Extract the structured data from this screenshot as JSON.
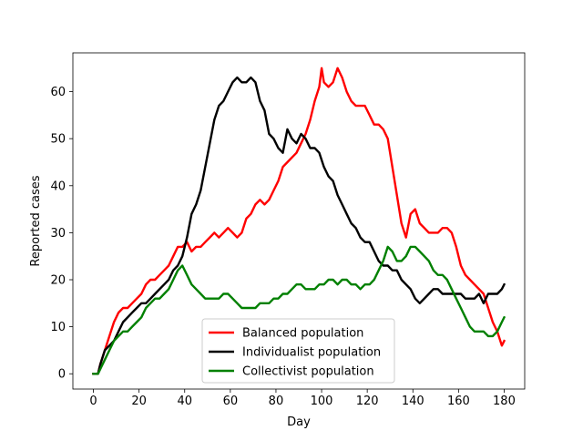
{
  "chart_data": {
    "type": "line",
    "title": "",
    "xlabel": "Day",
    "ylabel": "Reported cases",
    "xlim": [
      -9,
      189
    ],
    "ylim": [
      -3.25,
      68.25
    ],
    "xticks": [
      0,
      20,
      40,
      60,
      80,
      100,
      120,
      140,
      160,
      180
    ],
    "yticks": [
      0,
      10,
      20,
      30,
      40,
      50,
      60
    ],
    "grid": false,
    "legend_position": "lower center",
    "series": [
      {
        "name": "Balanced population",
        "color": "#ff0000",
        "points": [
          [
            0,
            0
          ],
          [
            2,
            0
          ],
          [
            3,
            2
          ],
          [
            5,
            5
          ],
          [
            7,
            8
          ],
          [
            9,
            11
          ],
          [
            11,
            13
          ],
          [
            13,
            14
          ],
          [
            15,
            14
          ],
          [
            17,
            15
          ],
          [
            19,
            16
          ],
          [
            21,
            17
          ],
          [
            23,
            19
          ],
          [
            25,
            20
          ],
          [
            27,
            20
          ],
          [
            29,
            21
          ],
          [
            31,
            22
          ],
          [
            33,
            23
          ],
          [
            35,
            25
          ],
          [
            37,
            27
          ],
          [
            39,
            27
          ],
          [
            41,
            28
          ],
          [
            43,
            26
          ],
          [
            45,
            27
          ],
          [
            47,
            27
          ],
          [
            49,
            28
          ],
          [
            51,
            29
          ],
          [
            53,
            30
          ],
          [
            55,
            29
          ],
          [
            57,
            30
          ],
          [
            59,
            31
          ],
          [
            61,
            30
          ],
          [
            63,
            29
          ],
          [
            65,
            30
          ],
          [
            67,
            33
          ],
          [
            69,
            34
          ],
          [
            71,
            36
          ],
          [
            73,
            37
          ],
          [
            75,
            36
          ],
          [
            77,
            37
          ],
          [
            79,
            39
          ],
          [
            81,
            41
          ],
          [
            83,
            44
          ],
          [
            85,
            45
          ],
          [
            87,
            46
          ],
          [
            89,
            47
          ],
          [
            91,
            49
          ],
          [
            93,
            51
          ],
          [
            95,
            54
          ],
          [
            97,
            58
          ],
          [
            99,
            61
          ],
          [
            100,
            65
          ],
          [
            101,
            62
          ],
          [
            103,
            61
          ],
          [
            105,
            62
          ],
          [
            107,
            65
          ],
          [
            109,
            63
          ],
          [
            111,
            60
          ],
          [
            113,
            58
          ],
          [
            115,
            57
          ],
          [
            117,
            57
          ],
          [
            119,
            57
          ],
          [
            121,
            55
          ],
          [
            123,
            53
          ],
          [
            125,
            53
          ],
          [
            127,
            52
          ],
          [
            129,
            50
          ],
          [
            131,
            44
          ],
          [
            133,
            38
          ],
          [
            135,
            32
          ],
          [
            137,
            29
          ],
          [
            139,
            34
          ],
          [
            141,
            35
          ],
          [
            143,
            32
          ],
          [
            145,
            31
          ],
          [
            147,
            30
          ],
          [
            149,
            30
          ],
          [
            151,
            30
          ],
          [
            153,
            31
          ],
          [
            155,
            31
          ],
          [
            157,
            30
          ],
          [
            159,
            27
          ],
          [
            161,
            23
          ],
          [
            163,
            21
          ],
          [
            165,
            20
          ],
          [
            167,
            19
          ],
          [
            169,
            18
          ],
          [
            171,
            17
          ],
          [
            173,
            14
          ],
          [
            175,
            11
          ],
          [
            177,
            9
          ],
          [
            179,
            6
          ],
          [
            180,
            7
          ]
        ]
      },
      {
        "name": "Individualist population",
        "color": "#000000",
        "points": [
          [
            0,
            0
          ],
          [
            2,
            0
          ],
          [
            3,
            2
          ],
          [
            5,
            5
          ],
          [
            7,
            6
          ],
          [
            9,
            7
          ],
          [
            11,
            9
          ],
          [
            13,
            11
          ],
          [
            15,
            12
          ],
          [
            17,
            13
          ],
          [
            19,
            14
          ],
          [
            21,
            15
          ],
          [
            23,
            15
          ],
          [
            25,
            16
          ],
          [
            27,
            17
          ],
          [
            29,
            18
          ],
          [
            31,
            19
          ],
          [
            33,
            20
          ],
          [
            35,
            22
          ],
          [
            37,
            23
          ],
          [
            39,
            25
          ],
          [
            41,
            29
          ],
          [
            43,
            34
          ],
          [
            45,
            36
          ],
          [
            47,
            39
          ],
          [
            49,
            44
          ],
          [
            51,
            49
          ],
          [
            53,
            54
          ],
          [
            55,
            57
          ],
          [
            57,
            58
          ],
          [
            59,
            60
          ],
          [
            61,
            62
          ],
          [
            63,
            63
          ],
          [
            65,
            62
          ],
          [
            67,
            62
          ],
          [
            69,
            63
          ],
          [
            71,
            62
          ],
          [
            73,
            58
          ],
          [
            75,
            56
          ],
          [
            77,
            51
          ],
          [
            79,
            50
          ],
          [
            81,
            48
          ],
          [
            83,
            47
          ],
          [
            85,
            52
          ],
          [
            87,
            50
          ],
          [
            89,
            49
          ],
          [
            91,
            51
          ],
          [
            93,
            50
          ],
          [
            95,
            48
          ],
          [
            97,
            48
          ],
          [
            99,
            47
          ],
          [
            101,
            44
          ],
          [
            103,
            42
          ],
          [
            105,
            41
          ],
          [
            107,
            38
          ],
          [
            109,
            36
          ],
          [
            111,
            34
          ],
          [
            113,
            32
          ],
          [
            115,
            31
          ],
          [
            117,
            29
          ],
          [
            119,
            28
          ],
          [
            121,
            28
          ],
          [
            123,
            26
          ],
          [
            125,
            24
          ],
          [
            127,
            23
          ],
          [
            129,
            23
          ],
          [
            131,
            22
          ],
          [
            133,
            22
          ],
          [
            135,
            20
          ],
          [
            137,
            19
          ],
          [
            139,
            18
          ],
          [
            141,
            16
          ],
          [
            143,
            15
          ],
          [
            145,
            16
          ],
          [
            147,
            17
          ],
          [
            149,
            18
          ],
          [
            151,
            18
          ],
          [
            153,
            17
          ],
          [
            155,
            17
          ],
          [
            157,
            17
          ],
          [
            159,
            17
          ],
          [
            161,
            17
          ],
          [
            163,
            16
          ],
          [
            165,
            16
          ],
          [
            167,
            16
          ],
          [
            169,
            17
          ],
          [
            171,
            15
          ],
          [
            173,
            17
          ],
          [
            175,
            17
          ],
          [
            177,
            17
          ],
          [
            179,
            18
          ],
          [
            180,
            19
          ]
        ]
      },
      {
        "name": "Collectivist population",
        "color": "#008000",
        "points": [
          [
            0,
            0
          ],
          [
            2,
            0
          ],
          [
            3,
            1
          ],
          [
            5,
            3
          ],
          [
            7,
            5
          ],
          [
            9,
            7
          ],
          [
            11,
            8
          ],
          [
            13,
            9
          ],
          [
            15,
            9
          ],
          [
            17,
            10
          ],
          [
            19,
            11
          ],
          [
            21,
            12
          ],
          [
            23,
            14
          ],
          [
            25,
            15
          ],
          [
            27,
            16
          ],
          [
            29,
            16
          ],
          [
            31,
            17
          ],
          [
            33,
            18
          ],
          [
            35,
            20
          ],
          [
            37,
            22
          ],
          [
            39,
            23
          ],
          [
            41,
            21
          ],
          [
            43,
            19
          ],
          [
            45,
            18
          ],
          [
            47,
            17
          ],
          [
            49,
            16
          ],
          [
            51,
            16
          ],
          [
            53,
            16
          ],
          [
            55,
            16
          ],
          [
            57,
            17
          ],
          [
            59,
            17
          ],
          [
            61,
            16
          ],
          [
            63,
            15
          ],
          [
            65,
            14
          ],
          [
            67,
            14
          ],
          [
            69,
            14
          ],
          [
            71,
            14
          ],
          [
            73,
            15
          ],
          [
            75,
            15
          ],
          [
            77,
            15
          ],
          [
            79,
            16
          ],
          [
            81,
            16
          ],
          [
            83,
            17
          ],
          [
            85,
            17
          ],
          [
            87,
            18
          ],
          [
            89,
            19
          ],
          [
            91,
            19
          ],
          [
            93,
            18
          ],
          [
            95,
            18
          ],
          [
            97,
            18
          ],
          [
            99,
            19
          ],
          [
            101,
            19
          ],
          [
            103,
            20
          ],
          [
            105,
            20
          ],
          [
            107,
            19
          ],
          [
            109,
            20
          ],
          [
            111,
            20
          ],
          [
            113,
            19
          ],
          [
            115,
            19
          ],
          [
            117,
            18
          ],
          [
            119,
            19
          ],
          [
            121,
            19
          ],
          [
            123,
            20
          ],
          [
            125,
            22
          ],
          [
            127,
            24
          ],
          [
            129,
            27
          ],
          [
            131,
            26
          ],
          [
            133,
            24
          ],
          [
            135,
            24
          ],
          [
            137,
            25
          ],
          [
            139,
            27
          ],
          [
            141,
            27
          ],
          [
            143,
            26
          ],
          [
            145,
            25
          ],
          [
            147,
            24
          ],
          [
            149,
            22
          ],
          [
            151,
            21
          ],
          [
            153,
            21
          ],
          [
            155,
            20
          ],
          [
            157,
            18
          ],
          [
            159,
            16
          ],
          [
            161,
            14
          ],
          [
            163,
            12
          ],
          [
            165,
            10
          ],
          [
            167,
            9
          ],
          [
            169,
            9
          ],
          [
            171,
            9
          ],
          [
            173,
            8
          ],
          [
            175,
            8
          ],
          [
            177,
            9
          ],
          [
            179,
            11
          ],
          [
            180,
            12
          ]
        ]
      }
    ]
  }
}
